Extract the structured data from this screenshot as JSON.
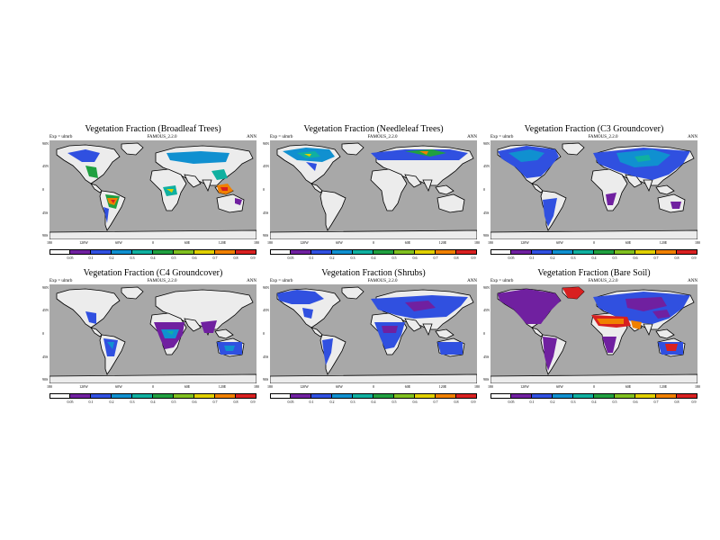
{
  "colors": {
    "ocean": "#a8a8a8",
    "land": "#ececec",
    "scale": [
      "#ffffff",
      "#7020a0",
      "#3050e0",
      "#1090d0",
      "#10b0a0",
      "#20a040",
      "#80c020",
      "#e0d000",
      "#f08000",
      "#d82020"
    ]
  },
  "axes": {
    "y_ticks": [
      "90N",
      "45N",
      "0",
      "45S",
      "90S"
    ],
    "x_ticks": [
      "180",
      "120W",
      "60W",
      "0",
      "60E",
      "120E",
      "180"
    ]
  },
  "colorbar_ticks": [
    "0.05",
    "0.1",
    "0.2",
    "0.3",
    "0.4",
    "0.5",
    "0.6",
    "0.7",
    "0.8",
    "0.9"
  ],
  "panels": [
    {
      "title": "Vegetation Fraction (Broadleaf Trees)",
      "left": "Exp = ulmrb",
      "center": "FAMOUS_2.2.0",
      "right": "ANN"
    },
    {
      "title": "Vegetation Fraction (Needleleaf Trees)",
      "left": "Exp = ulmrb",
      "center": "FAMOUS_2.2.0",
      "right": "ANN"
    },
    {
      "title": "Vegetation Fraction (C3 Groundcover)",
      "left": "Exp = ulmrb",
      "center": "FAMOUS_2.2.0",
      "right": "ANN"
    },
    {
      "title": "Vegetation Fraction (C4 Groundcover)",
      "left": "Exp = ulmrb",
      "center": "FAMOUS_2.2.0",
      "right": "ANN"
    },
    {
      "title": "Vegetation Fraction (Shrubs)",
      "left": "Exp = ulmrb",
      "center": "FAMOUS_2.2.0",
      "right": "ANN"
    },
    {
      "title": "Vegetation Fraction (Bare Soil)",
      "left": "Exp = ulmrb",
      "center": "FAMOUS_2.2.0",
      "right": "ANN"
    }
  ]
}
